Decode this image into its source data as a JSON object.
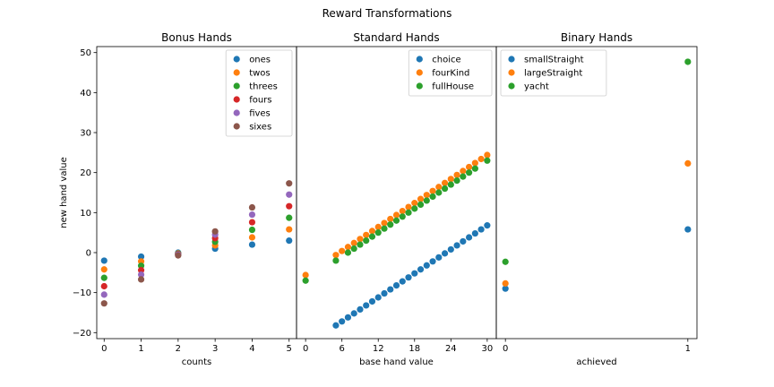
{
  "figure": {
    "title": "Reward Transformations"
  },
  "colors": {
    "blue": "#1f77b4",
    "orange": "#ff7f0e",
    "green": "#2ca02c",
    "red": "#d62728",
    "purple": "#9467bd",
    "brown": "#8c564b"
  },
  "chart_data": [
    {
      "type": "scatter",
      "title": "Bonus Hands",
      "xlabel": "counts",
      "ylabel": "new hand value",
      "xlim": [
        -0.2,
        5.2
      ],
      "ylim": [
        -21.5,
        51.5
      ],
      "xticks": [
        0,
        1,
        2,
        3,
        4,
        5
      ],
      "yticks": [
        -20,
        -10,
        0,
        10,
        20,
        30,
        40,
        50
      ],
      "legend": "top-right",
      "series": [
        {
          "name": "ones",
          "color": "#1f77b4",
          "x": [
            0,
            1,
            2,
            3,
            4,
            5
          ],
          "y": [
            -2.0,
            -1.0,
            0.0,
            1.0,
            2.0,
            3.0
          ]
        },
        {
          "name": "twos",
          "color": "#ff7f0e",
          "x": [
            0,
            1,
            2,
            3,
            4,
            5
          ],
          "y": [
            -4.2,
            -2.2,
            -0.2,
            1.8,
            3.8,
            5.8
          ]
        },
        {
          "name": "threes",
          "color": "#2ca02c",
          "x": [
            0,
            1,
            2,
            3,
            4,
            5
          ],
          "y": [
            -6.3,
            -3.3,
            -0.3,
            2.7,
            5.7,
            8.7
          ]
        },
        {
          "name": "fours",
          "color": "#d62728",
          "x": [
            0,
            1,
            2,
            3,
            4,
            5
          ],
          "y": [
            -8.4,
            -4.4,
            -0.4,
            3.6,
            7.6,
            11.6
          ]
        },
        {
          "name": "fives",
          "color": "#9467bd",
          "x": [
            0,
            1,
            2,
            3,
            4,
            5
          ],
          "y": [
            -10.5,
            -5.5,
            -0.5,
            4.5,
            9.5,
            14.5
          ]
        },
        {
          "name": "sixes",
          "color": "#8c564b",
          "x": [
            0,
            1,
            2,
            3,
            4,
            5
          ],
          "y": [
            -12.7,
            -6.7,
            -0.7,
            5.3,
            11.3,
            17.3
          ]
        }
      ]
    },
    {
      "type": "scatter",
      "title": "Standard Hands",
      "xlabel": "base hand value",
      "ylabel": "",
      "xlim": [
        -1.5,
        31.5
      ],
      "xticks": [
        0,
        6,
        12,
        18,
        24,
        30
      ],
      "legend": "top-right",
      "series": [
        {
          "name": "choice",
          "color": "#1f77b4",
          "x": [
            5,
            6,
            7,
            8,
            9,
            10,
            11,
            12,
            13,
            14,
            15,
            16,
            17,
            18,
            19,
            20,
            21,
            22,
            23,
            24,
            25,
            26,
            27,
            28,
            29,
            30
          ],
          "y": [
            -18.2,
            -17.2,
            -16.2,
            -15.2,
            -14.2,
            -13.2,
            -12.2,
            -11.2,
            -10.2,
            -9.2,
            -8.2,
            -7.2,
            -6.2,
            -5.2,
            -4.2,
            -3.2,
            -2.2,
            -1.2,
            -0.2,
            0.8,
            1.8,
            2.8,
            3.8,
            4.8,
            5.8,
            6.8
          ]
        },
        {
          "name": "fourKind",
          "color": "#ff7f0e",
          "x": [
            0,
            5,
            6,
            7,
            8,
            9,
            10,
            11,
            12,
            13,
            14,
            15,
            16,
            17,
            18,
            19,
            20,
            21,
            22,
            23,
            24,
            25,
            26,
            27,
            28,
            29,
            30
          ],
          "y": [
            -5.6,
            -0.6,
            0.4,
            1.4,
            2.4,
            3.4,
            4.4,
            5.4,
            6.4,
            7.4,
            8.4,
            9.4,
            10.4,
            11.4,
            12.4,
            13.4,
            14.4,
            15.4,
            16.4,
            17.4,
            18.4,
            19.4,
            20.4,
            21.4,
            22.4,
            23.4,
            24.4
          ]
        },
        {
          "name": "fullHouse",
          "color": "#2ca02c",
          "x": [
            0,
            5,
            7,
            8,
            9,
            10,
            11,
            12,
            13,
            14,
            15,
            16,
            17,
            18,
            19,
            20,
            21,
            22,
            23,
            24,
            25,
            26,
            27,
            28,
            30
          ],
          "y": [
            -7.0,
            -2.0,
            0.0,
            1.0,
            2.0,
            3.0,
            4.0,
            5.0,
            6.0,
            7.0,
            8.0,
            9.0,
            10.0,
            11.0,
            12.0,
            13.0,
            14.0,
            15.0,
            16.0,
            17.0,
            18.0,
            19.0,
            20.0,
            21.0,
            23.0
          ]
        }
      ]
    },
    {
      "type": "scatter",
      "title": "Binary Hands",
      "xlabel": "achieved",
      "ylabel": "",
      "xlim": [
        -0.05,
        1.05
      ],
      "xticks": [
        0,
        1
      ],
      "legend": "top-left",
      "series": [
        {
          "name": "smallStraight",
          "color": "#1f77b4",
          "x": [
            0,
            1
          ],
          "y": [
            -9.0,
            5.8
          ]
        },
        {
          "name": "largeStraight",
          "color": "#ff7f0e",
          "x": [
            0,
            1
          ],
          "y": [
            -7.7,
            22.3
          ]
        },
        {
          "name": "yacht",
          "color": "#2ca02c",
          "x": [
            0,
            1
          ],
          "y": [
            -2.3,
            47.7
          ]
        }
      ]
    }
  ]
}
